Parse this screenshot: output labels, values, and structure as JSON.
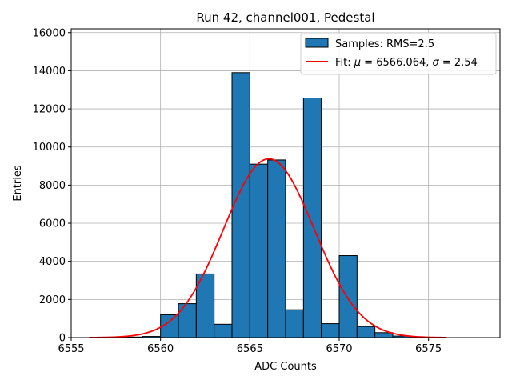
{
  "chart_data": {
    "type": "bar",
    "title": "Run 42, channel001, Pedestal",
    "xlabel": "ADC Counts",
    "ylabel": "Entries",
    "xlim": [
      6555,
      6579
    ],
    "ylim": [
      0,
      16200
    ],
    "xticks": [
      6555,
      6560,
      6565,
      6570,
      6575
    ],
    "yticks": [
      0,
      2000,
      4000,
      6000,
      8000,
      10000,
      12000,
      14000,
      16000
    ],
    "grid": true,
    "legend_position": "top-right",
    "histogram": {
      "name": "Samples: RMS=2.5",
      "bin_edges": [
        6556,
        6557,
        6558,
        6559,
        6560,
        6561,
        6562,
        6563,
        6564,
        6565,
        6566,
        6567,
        6568,
        6569,
        6570,
        6571,
        6572,
        6573,
        6574,
        6575,
        6576
      ],
      "counts": [
        0,
        10,
        30,
        60,
        1200,
        1780,
        3340,
        700,
        13900,
        9100,
        9320,
        1460,
        12570,
        730,
        4300,
        580,
        260,
        80,
        15,
        5
      ],
      "color": "#1f77b4",
      "edge_color": "#000000"
    },
    "fit": {
      "name_prefix": "Fit: ",
      "name_mu": "μ",
      "name_mu_value": " = 6566.064, ",
      "name_sigma": "σ",
      "name_sigma_value": " = 2.54",
      "mu": 6566.064,
      "sigma": 2.54,
      "amplitude": 9380,
      "x_range": [
        6556,
        6576
      ],
      "color": "#ff0000"
    }
  }
}
